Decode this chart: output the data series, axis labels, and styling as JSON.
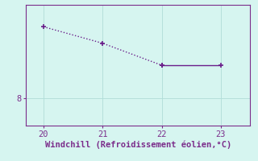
{
  "x": [
    20,
    21,
    22,
    23
  ],
  "y": [
    9.3,
    9.0,
    8.6,
    8.6
  ],
  "xlim": [
    19.7,
    23.5
  ],
  "ylim": [
    7.5,
    9.7
  ],
  "xticks": [
    20,
    21,
    22,
    23
  ],
  "yticks": [
    8
  ],
  "xlabel": "Windchill (Refroidissement éolien,°C)",
  "line_color": "#6a1e8a",
  "marker_color": "#6a1e8a",
  "bg_color": "#d6f5f0",
  "grid_color": "#b0ddd8",
  "axis_color": "#7b2d8b",
  "tick_label_color": "#7b2d8b",
  "xlabel_color": "#7b2d8b",
  "markersize": 4,
  "linewidth": 1.0,
  "xlabel_fontsize": 7.5,
  "tick_fontsize": 7.5
}
